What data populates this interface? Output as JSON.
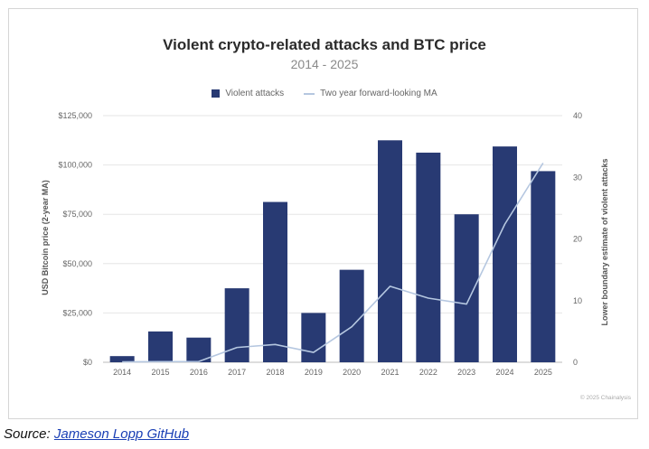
{
  "chart_data": {
    "type": "bar",
    "title": "Violent crypto-related attacks and BTC price",
    "subtitle": "2014 - 2025",
    "categories": [
      "2014",
      "2015",
      "2016",
      "2017",
      "2018",
      "2019",
      "2020",
      "2021",
      "2022",
      "2023",
      "2024",
      "2025"
    ],
    "series": [
      {
        "name": "Violent attacks",
        "type": "bar",
        "axis": "right",
        "values": [
          1,
          5,
          4,
          12,
          26,
          8,
          15,
          36,
          34,
          24,
          35,
          31
        ]
      },
      {
        "name": "Two year forward-looking MA",
        "type": "line",
        "axis": "left",
        "values": [
          200,
          300,
          400,
          7500,
          9000,
          5000,
          18000,
          38500,
          32500,
          29500,
          70000,
          101000
        ]
      }
    ],
    "ylabel_left": "USD Bitcoin price (2-year MA)",
    "ylabel_right": "Lower boundary estimate of violent attacks",
    "ylim_left": [
      0,
      125000
    ],
    "ylim_right": [
      0,
      40
    ],
    "yticks_left": [
      "$0",
      "$25,000",
      "$50,000",
      "$75,000",
      "$100,000",
      "$125,000"
    ],
    "yticks_right": [
      "0",
      "10",
      "20",
      "30",
      "40"
    ],
    "grid": true,
    "legend": "top-center",
    "colors": {
      "bar": "#283a73",
      "line": "#b5c7e0"
    }
  },
  "copyright": "© 2025 Chainalysis",
  "source": {
    "prefix": "Source:",
    "link_text": "Jameson Lopp GitHub"
  }
}
